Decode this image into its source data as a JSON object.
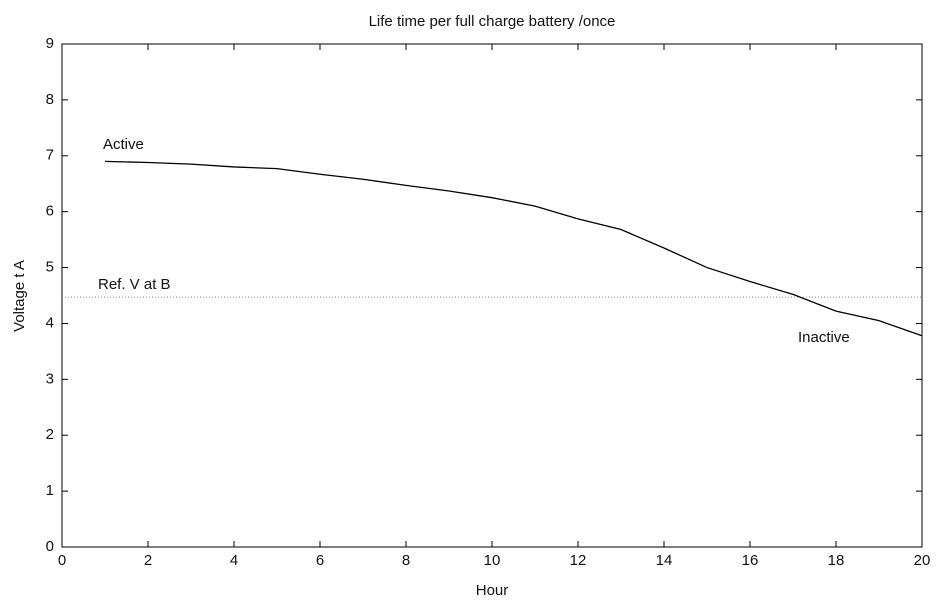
{
  "chart_data": {
    "type": "line",
    "title": "Life time per full charge battery /once",
    "x_label": "Hour",
    "y_label": "Voltage t A",
    "x": [
      1,
      2,
      3,
      4,
      5,
      6,
      7,
      8,
      9,
      10,
      11,
      12,
      13,
      14,
      15,
      16,
      17,
      18,
      19,
      20
    ],
    "values": [
      6.9,
      6.88,
      6.85,
      6.8,
      6.77,
      6.67,
      6.58,
      6.47,
      6.37,
      6.25,
      6.1,
      5.87,
      5.68,
      5.35,
      5.0,
      4.75,
      4.52,
      4.22,
      4.05,
      3.78
    ],
    "color": "#000000",
    "reference_line": {
      "label": "Ref. V at B",
      "value": 4.47,
      "color": "#888888"
    },
    "annotations": [
      "Active",
      "Inactive"
    ],
    "xlim": [
      0,
      20
    ],
    "xticks": [
      0,
      2,
      4,
      6,
      8,
      10,
      12,
      14,
      16,
      18,
      20
    ],
    "ylim": [
      0,
      9
    ],
    "yticks": [
      0,
      1,
      2,
      3,
      4,
      5,
      6,
      7,
      8,
      9
    ],
    "grid": false
  }
}
